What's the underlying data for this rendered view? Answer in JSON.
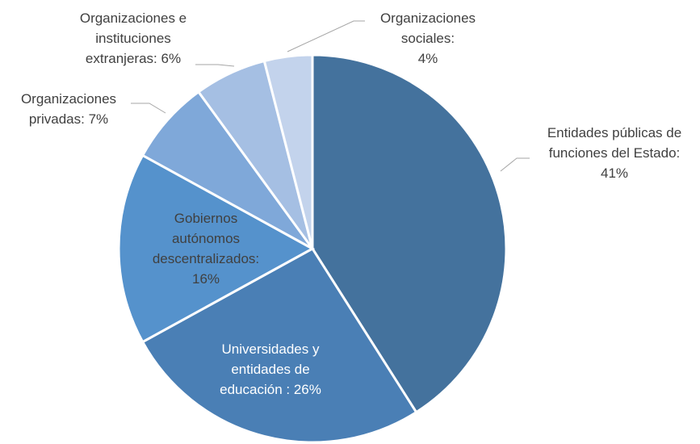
{
  "chart_data": {
    "type": "pie",
    "categories": [
      "Entidades públicas de funciones del Estado:",
      "Universidades y entidades de educación :",
      "Gobiernos autónomos descentralizados:",
      "Organizaciones privadas:",
      "Organizaciones e instituciones extranjeras:",
      "Organizaciones sociales:"
    ],
    "values": [
      41,
      26,
      16,
      7,
      6,
      4
    ],
    "value_labels": [
      "41%",
      "26%",
      "16%",
      "7%",
      "6%",
      "4%"
    ],
    "colors": [
      "#44729d",
      "#4a7fb5",
      "#5592cc",
      "#7fa8d9",
      "#a5bfe3",
      "#c3d3ec"
    ]
  }
}
